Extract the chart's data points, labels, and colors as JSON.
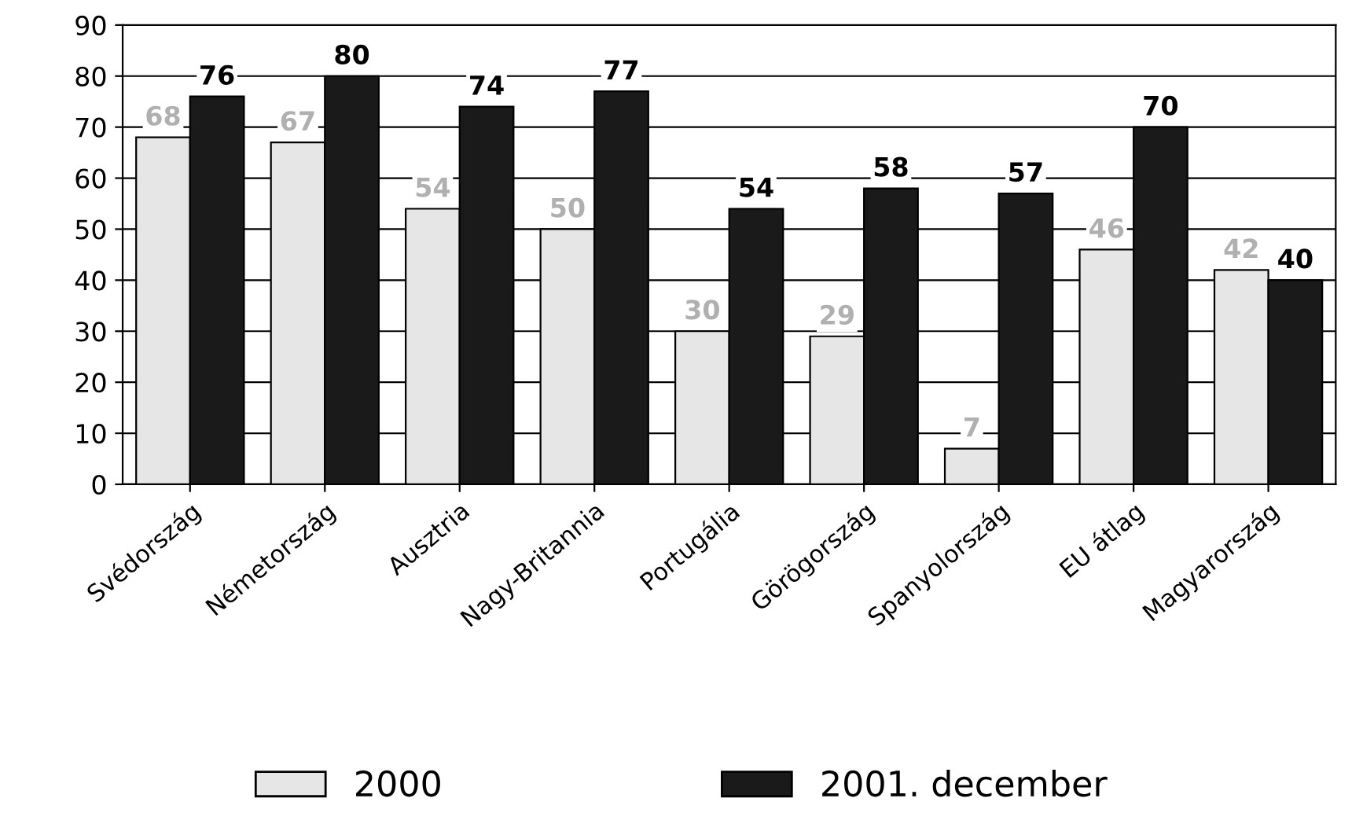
{
  "chart_data": {
    "type": "bar",
    "categories": [
      "Svédország",
      "Németország",
      "Ausztria",
      "Nagy-Britannia",
      "Portugália",
      "Görögország",
      "Spanyolország",
      "EU átlag",
      "Magyarország"
    ],
    "series": [
      {
        "name": "2000",
        "color": "#e6e6e6",
        "values": [
          68,
          67,
          54,
          50,
          30,
          29,
          7,
          46,
          42
        ]
      },
      {
        "name": "2001. december",
        "color": "#1a1a1a",
        "values": [
          76,
          80,
          74,
          77,
          54,
          58,
          57,
          70,
          40
        ]
      }
    ],
    "ylim": [
      0,
      90
    ],
    "yticks": [
      0,
      10,
      20,
      30,
      40,
      50,
      60,
      70,
      80,
      90
    ],
    "grid": "y",
    "legend": "bottom",
    "data_labels": true
  }
}
